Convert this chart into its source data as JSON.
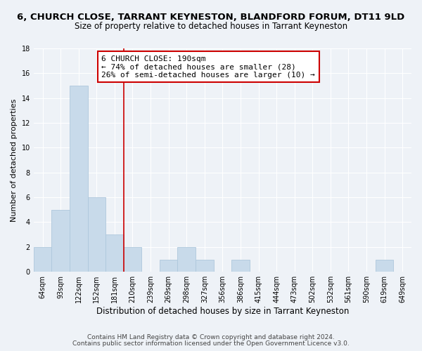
{
  "title": "6, CHURCH CLOSE, TARRANT KEYNESTON, BLANDFORD FORUM, DT11 9LD",
  "subtitle": "Size of property relative to detached houses in Tarrant Keyneston",
  "xlabel": "Distribution of detached houses by size in Tarrant Keyneston",
  "ylabel": "Number of detached properties",
  "bin_labels": [
    "64sqm",
    "93sqm",
    "122sqm",
    "152sqm",
    "181sqm",
    "210sqm",
    "239sqm",
    "269sqm",
    "298sqm",
    "327sqm",
    "356sqm",
    "386sqm",
    "415sqm",
    "444sqm",
    "473sqm",
    "502sqm",
    "532sqm",
    "561sqm",
    "590sqm",
    "619sqm",
    "649sqm"
  ],
  "bar_values": [
    2,
    5,
    15,
    6,
    3,
    2,
    0,
    1,
    2,
    1,
    0,
    1,
    0,
    0,
    0,
    0,
    0,
    0,
    0,
    1,
    0
  ],
  "bar_color": "#c8daea",
  "bar_edge_color": "#aec8dc",
  "vline_x": 4.5,
  "vline_color": "#cc0000",
  "annotation_line1": "6 CHURCH CLOSE: 190sqm",
  "annotation_line2": "← 74% of detached houses are smaller (28)",
  "annotation_line3": "26% of semi-detached houses are larger (10) →",
  "annotation_box_color": "white",
  "annotation_box_edge": "#cc0000",
  "ylim": [
    0,
    18
  ],
  "yticks": [
    0,
    2,
    4,
    6,
    8,
    10,
    12,
    14,
    16,
    18
  ],
  "footer_line1": "Contains HM Land Registry data © Crown copyright and database right 2024.",
  "footer_line2": "Contains public sector information licensed under the Open Government Licence v3.0.",
  "bg_color": "#eef2f7",
  "plot_bg_color": "#eef2f7",
  "title_fontsize": 9.5,
  "subtitle_fontsize": 8.5,
  "xlabel_fontsize": 8.5,
  "ylabel_fontsize": 8,
  "tick_fontsize": 7,
  "annotation_fontsize": 8,
  "footer_fontsize": 6.5
}
